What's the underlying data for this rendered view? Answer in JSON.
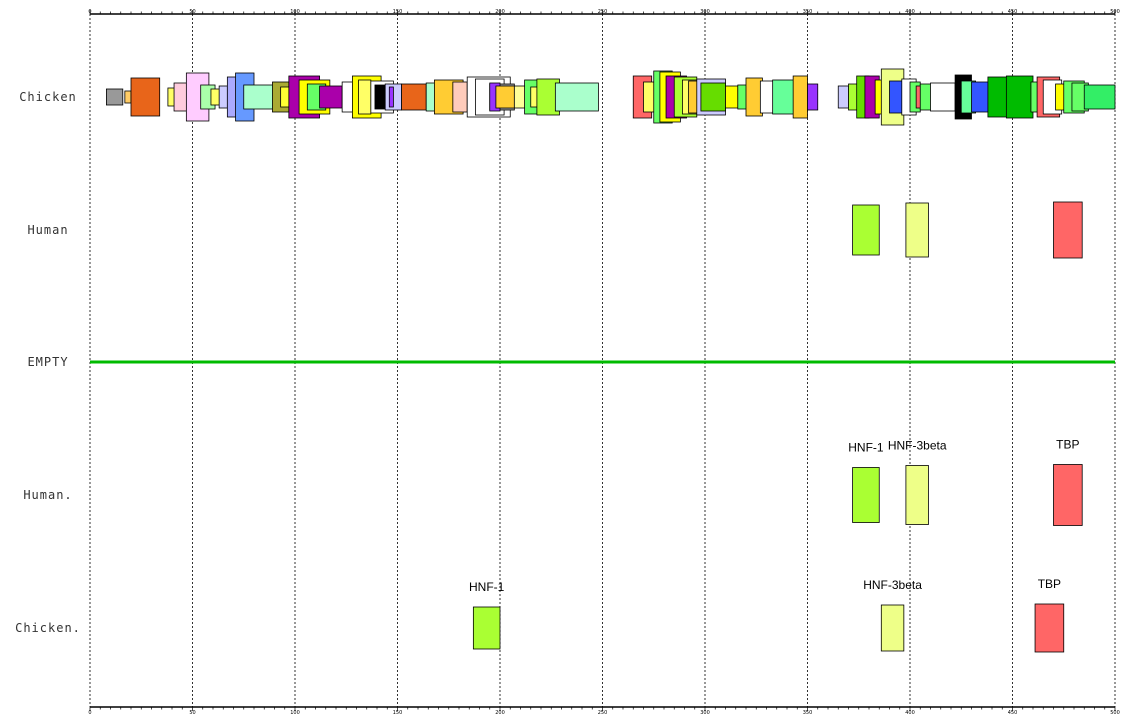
{
  "axis": {
    "min": 0,
    "max": 500,
    "major_ticks": [
      0,
      50,
      100,
      150,
      200,
      250,
      300,
      350,
      400,
      450,
      500
    ],
    "minor_step": 5,
    "gridlines": "dotted vertical at each major tick"
  },
  "rows": [
    {
      "id": "chicken",
      "label": "Chicken",
      "kind": "dense",
      "features": [
        {
          "start": 8,
          "end": 16,
          "color": "#999999"
        },
        {
          "start": 17,
          "end": 20,
          "color": "#ffcc66"
        },
        {
          "start": 20,
          "end": 34,
          "color": "#e8651a"
        },
        {
          "start": 38,
          "end": 42,
          "color": "#ffff66"
        },
        {
          "start": 41,
          "end": 48,
          "color": "#ffccdd"
        },
        {
          "start": 47,
          "end": 58,
          "color": "#ffccff"
        },
        {
          "start": 54,
          "end": 61,
          "color": "#aaffaa"
        },
        {
          "start": 59,
          "end": 64,
          "color": "#ffff66"
        },
        {
          "start": 63,
          "end": 67,
          "color": "#ccccff"
        },
        {
          "start": 67,
          "end": 72,
          "color": "#aaaaff"
        },
        {
          "start": 71,
          "end": 80,
          "color": "#6699ff"
        },
        {
          "start": 75,
          "end": 92,
          "color": "#aaffcc"
        },
        {
          "start": 89,
          "end": 97,
          "color": "#aaaa33"
        },
        {
          "start": 93,
          "end": 98,
          "color": "#ffff33"
        },
        {
          "start": 97,
          "end": 112,
          "color": "#aa00aa"
        },
        {
          "start": 102,
          "end": 117,
          "color": "#ffff00"
        },
        {
          "start": 106,
          "end": 115,
          "color": "#66ff66"
        },
        {
          "start": 112,
          "end": 123,
          "color": "#aa00aa"
        },
        {
          "start": 123,
          "end": 131,
          "color": "#ffffff"
        },
        {
          "start": 128,
          "end": 142,
          "color": "#ffff00"
        },
        {
          "start": 131,
          "end": 137,
          "color": "#ffff66"
        },
        {
          "start": 137,
          "end": 148,
          "color": "#ffffff"
        },
        {
          "start": 139,
          "end": 146,
          "color": "#000000"
        },
        {
          "start": 144,
          "end": 152,
          "color": "#ccccff"
        },
        {
          "start": 146,
          "end": 148,
          "color": "#9933ff"
        },
        {
          "start": 152,
          "end": 164,
          "color": "#e8651a"
        },
        {
          "start": 164,
          "end": 174,
          "color": "#aaffcc"
        },
        {
          "start": 168,
          "end": 182,
          "color": "#ffcc33"
        },
        {
          "start": 177,
          "end": 184,
          "color": "#ffccbb"
        },
        {
          "start": 184,
          "end": 205,
          "color": "#ffffff"
        },
        {
          "start": 188,
          "end": 202,
          "color": "#ffffff"
        },
        {
          "start": 195,
          "end": 207,
          "color": "#999999"
        },
        {
          "start": 195,
          "end": 200,
          "color": "#9933ff"
        },
        {
          "start": 198,
          "end": 207,
          "color": "#ffcc33"
        },
        {
          "start": 207,
          "end": 215,
          "color": "#ffff99"
        },
        {
          "start": 212,
          "end": 221,
          "color": "#66ff66"
        },
        {
          "start": 215,
          "end": 222,
          "color": "#ffff66"
        },
        {
          "start": 218,
          "end": 229,
          "color": "#aaff33"
        },
        {
          "start": 227,
          "end": 248,
          "color": "#aaffcc"
        },
        {
          "start": 265,
          "end": 274,
          "color": "#ff6666"
        },
        {
          "start": 270,
          "end": 276,
          "color": "#ffff66"
        },
        {
          "start": 275,
          "end": 284,
          "color": "#66ff66"
        },
        {
          "start": 278,
          "end": 288,
          "color": "#ffff00"
        },
        {
          "start": 281,
          "end": 291,
          "color": "#aa00aa"
        },
        {
          "start": 285,
          "end": 296,
          "color": "#aaff33"
        },
        {
          "start": 289,
          "end": 298,
          "color": "#ffff66"
        },
        {
          "start": 292,
          "end": 302,
          "color": "#ffcc33"
        },
        {
          "start": 296,
          "end": 310,
          "color": "#ccccff"
        },
        {
          "start": 298,
          "end": 310,
          "color": "#66dd00"
        },
        {
          "start": 310,
          "end": 316,
          "color": "#ffff00"
        },
        {
          "start": 316,
          "end": 327,
          "color": "#66ff66"
        },
        {
          "start": 320,
          "end": 328,
          "color": "#ffcc33"
        },
        {
          "start": 327,
          "end": 335,
          "color": "#ffffff"
        },
        {
          "start": 333,
          "end": 344,
          "color": "#66ff99"
        },
        {
          "start": 343,
          "end": 350,
          "color": "#ffcc33"
        },
        {
          "start": 350,
          "end": 355,
          "color": "#9933ff"
        },
        {
          "start": 365,
          "end": 370,
          "color": "#ccccff"
        },
        {
          "start": 370,
          "end": 375,
          "color": "#aaff33"
        },
        {
          "start": 374,
          "end": 380,
          "color": "#66dd00"
        },
        {
          "start": 378,
          "end": 385,
          "color": "#aa00aa"
        },
        {
          "start": 383,
          "end": 390,
          "color": "#ffff00"
        },
        {
          "start": 386,
          "end": 397,
          "color": "#eeff88"
        },
        {
          "start": 390,
          "end": 398,
          "color": "#3355ff"
        },
        {
          "start": 396,
          "end": 403,
          "color": "#ffffff"
        },
        {
          "start": 400,
          "end": 405,
          "color": "#66ff66"
        },
        {
          "start": 403,
          "end": 407,
          "color": "#ff6666"
        },
        {
          "start": 405,
          "end": 411,
          "color": "#66ff66"
        },
        {
          "start": 410,
          "end": 422,
          "color": "#ffffff"
        },
        {
          "start": 422,
          "end": 430,
          "color": "#000000"
        },
        {
          "start": 425,
          "end": 432,
          "color": "#66ff99"
        },
        {
          "start": 430,
          "end": 440,
          "color": "#3355ff"
        },
        {
          "start": 438,
          "end": 448,
          "color": "#00bb00"
        },
        {
          "start": 447,
          "end": 460,
          "color": "#00bb00"
        },
        {
          "start": 459,
          "end": 466,
          "color": "#66ff66"
        },
        {
          "start": 462,
          "end": 473,
          "color": "#ff6666"
        },
        {
          "start": 465,
          "end": 474,
          "color": "#ffffff"
        },
        {
          "start": 471,
          "end": 480,
          "color": "#ffff00"
        },
        {
          "start": 475,
          "end": 485,
          "color": "#66ff66"
        },
        {
          "start": 479,
          "end": 487,
          "color": "#66ff66"
        },
        {
          "start": 485,
          "end": 500,
          "color": "#33ee66"
        }
      ]
    },
    {
      "id": "human",
      "label": "Human",
      "kind": "sparse",
      "features": [
        {
          "start": 372,
          "end": 385,
          "color": "#aaff33"
        },
        {
          "start": 398,
          "end": 409,
          "color": "#eeff88"
        },
        {
          "start": 470,
          "end": 484,
          "color": "#ff6666"
        }
      ]
    },
    {
      "id": "empty",
      "label": "EMPTY",
      "kind": "line",
      "color": "#00bb00"
    },
    {
      "id": "human-annotated",
      "label": "Human.",
      "kind": "annotated",
      "features": [
        {
          "start": 372,
          "end": 385,
          "color": "#aaff33",
          "name": "HNF-1"
        },
        {
          "start": 398,
          "end": 409,
          "color": "#eeff88",
          "name": "HNF-3beta"
        },
        {
          "start": 470,
          "end": 484,
          "color": "#ff6666",
          "name": "TBP"
        }
      ]
    },
    {
      "id": "chicken-annotated",
      "label": "Chicken.",
      "kind": "annotated",
      "features": [
        {
          "start": 187,
          "end": 200,
          "color": "#aaff33",
          "name": "HNF-1"
        },
        {
          "start": 386,
          "end": 397,
          "color": "#eeff88",
          "name": "HNF-3beta"
        },
        {
          "start": 461,
          "end": 475,
          "color": "#ff6666",
          "name": "TBP"
        }
      ]
    }
  ]
}
